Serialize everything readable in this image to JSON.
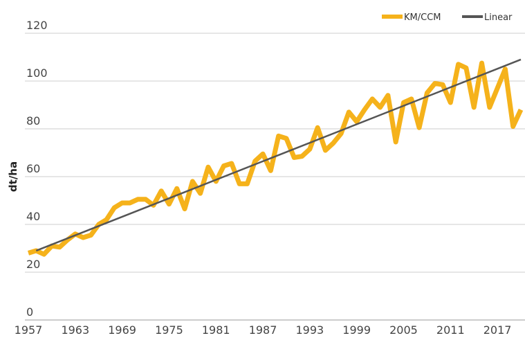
{
  "chart_data": {
    "type": "line",
    "y_label": "dt/ha",
    "x": [
      1957,
      1958,
      1959,
      1960,
      1961,
      1962,
      1963,
      1964,
      1965,
      1966,
      1967,
      1968,
      1969,
      1970,
      1971,
      1972,
      1973,
      1974,
      1975,
      1976,
      1977,
      1978,
      1979,
      1980,
      1981,
      1982,
      1983,
      1984,
      1985,
      1986,
      1987,
      1988,
      1989,
      1990,
      1991,
      1992,
      1993,
      1994,
      1995,
      1996,
      1997,
      1998,
      1999,
      2000,
      2001,
      2002,
      2003,
      2004,
      2005,
      2006,
      2007,
      2008,
      2009,
      2010,
      2011,
      2012,
      2013,
      2014,
      2015,
      2016,
      2017,
      2018,
      2019,
      2020
    ],
    "series": [
      {
        "name": "KM/CCM",
        "color": "#f5b21b",
        "values": [
          28,
          29,
          27.5,
          31,
          30.5,
          33.5,
          36,
          34.5,
          35.5,
          40,
          42,
          47,
          49,
          49,
          50.5,
          50.5,
          48,
          54,
          48.5,
          55,
          46.5,
          58,
          53,
          64,
          58,
          64.5,
          65.5,
          57,
          57,
          66.5,
          69.5,
          62.5,
          77,
          76,
          68,
          68.5,
          71.5,
          80.5,
          71,
          74,
          78,
          87,
          83,
          88,
          92.5,
          89,
          94,
          74.5,
          91,
          92.5,
          80.5,
          95,
          99,
          98.5,
          91,
          107,
          105.5,
          89,
          107.5,
          89,
          97,
          105,
          81,
          88
        ]
      },
      {
        "name": "Linear",
        "color": "#555555",
        "x": [
          1958,
          2020
        ],
        "values": [
          29,
          109
        ]
      }
    ],
    "xlim": [
      1957,
      2020
    ],
    "xticks": [
      1957,
      1963,
      1969,
      1975,
      1981,
      1987,
      1993,
      1999,
      2005,
      2011,
      2017
    ],
    "ylim": [
      0,
      120
    ],
    "yticks": [
      0,
      20,
      40,
      60,
      80,
      100,
      120
    ],
    "grid": true
  }
}
